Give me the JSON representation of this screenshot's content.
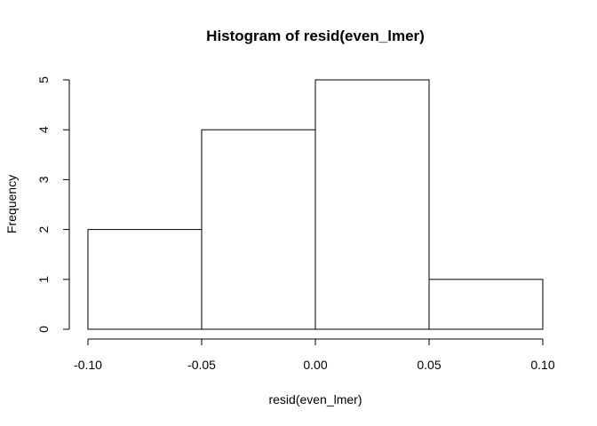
{
  "chart_data": {
    "type": "bar",
    "title": "Histogram of resid(even_lmer)",
    "xlabel": "resid(even_lmer)",
    "ylabel": "Frequency",
    "bins": [
      {
        "start": -0.1,
        "end": -0.05,
        "count": 2
      },
      {
        "start": -0.05,
        "end": 0.0,
        "count": 4
      },
      {
        "start": 0.0,
        "end": 0.05,
        "count": 5
      },
      {
        "start": 0.05,
        "end": 0.1,
        "count": 1
      }
    ],
    "x_ticks": [
      {
        "value": -0.1,
        "label": "-0.10"
      },
      {
        "value": -0.05,
        "label": "-0.05"
      },
      {
        "value": 0.0,
        "label": "0.00"
      },
      {
        "value": 0.05,
        "label": "0.05"
      },
      {
        "value": 0.1,
        "label": "0.10"
      }
    ],
    "y_ticks": [
      {
        "value": 0,
        "label": "0"
      },
      {
        "value": 1,
        "label": "1"
      },
      {
        "value": 2,
        "label": "2"
      },
      {
        "value": 3,
        "label": "3"
      },
      {
        "value": 4,
        "label": "4"
      },
      {
        "value": 5,
        "label": "5"
      }
    ],
    "xlim": [
      -0.1,
      0.1
    ],
    "ylim": [
      0,
      5
    ],
    "grid": false,
    "bar_fill": "#ffffff",
    "bar_stroke": "#000000"
  }
}
